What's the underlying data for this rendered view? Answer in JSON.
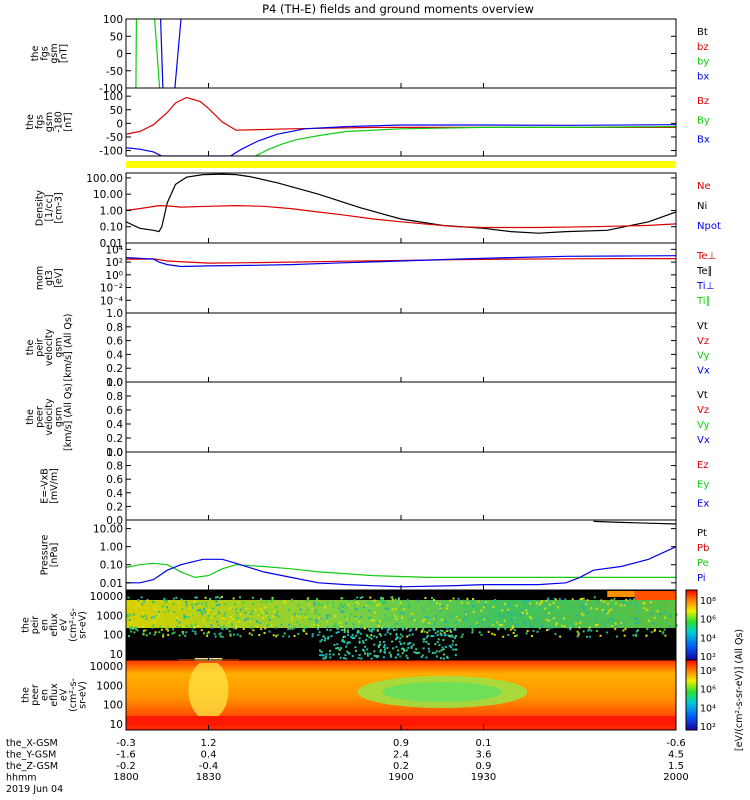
{
  "title": "P4 (TH-E) fields and ground moments overview",
  "colors": {
    "black": "#000000",
    "red": "#dd0000",
    "green": "#11cc11",
    "blue": "#0000ee",
    "yellow": "#ffff00",
    "spectrogram_background": "#000000"
  },
  "time_axis": {
    "tick_labels": [
      "1800",
      "1830",
      "1900",
      "1930",
      "2000"
    ],
    "row_labels": [
      "the_X-GSM",
      "the_Y-GSM",
      "the_Z-GSM",
      "hhmm",
      "2019 Jun 04"
    ],
    "position_rows": [
      [
        "-0.3",
        "1.2",
        "0.9",
        "0.1",
        "-0.6"
      ],
      [
        "-1.6",
        "0.4",
        "2.4",
        "3.6",
        "4.5"
      ],
      [
        "-0.2",
        "-0.4",
        "0.2",
        "0.9",
        "1.5"
      ]
    ]
  },
  "colorbars": [
    {
      "label": "[eV/(cm^2-s-sr-eV)] (All Qs)",
      "ticks": [
        "10^8",
        "10^6",
        "10^4",
        "10^2"
      ]
    },
    {
      "label": "[eV/(cm^2-s-sr-eV)]",
      "ticks": [
        "10^8",
        "10^6",
        "10^4",
        "10^2"
      ]
    }
  ],
  "chart_data": [
    {
      "type": "line",
      "ylabel": [
        "the",
        "fgs",
        "gsm",
        "[nT]"
      ],
      "ylim": [
        -100,
        100
      ],
      "y_ticks": [
        "100",
        "50",
        "0",
        "-50",
        "-100"
      ],
      "legend": [
        "Bt",
        "bz",
        "by",
        "bx"
      ],
      "legend_colors": [
        "#000000",
        "#dd0000",
        "#11cc11",
        "#0000ee"
      ],
      "series": [
        {
          "name": "by",
          "color": "#11cc11",
          "x": [
            1803.6,
            1803.8
          ],
          "y": [
            -100,
            100
          ]
        },
        {
          "name": "by",
          "color": "#11cc11",
          "x": [
            1810.4,
            1812.2
          ],
          "y": [
            100,
            -100
          ]
        },
        {
          "name": "bx",
          "color": "#0000ee",
          "x": [
            1812.6,
            1813.4
          ],
          "y": [
            100,
            -100
          ]
        },
        {
          "name": "bx",
          "color": "#0000ee",
          "x": [
            1817.8,
            1820.0
          ],
          "y": [
            -100,
            100
          ]
        }
      ]
    },
    {
      "type": "line",
      "ylabel": [
        "the",
        "fgs",
        "gsm",
        "-180",
        "[nT]"
      ],
      "ylim": [
        -120,
        130
      ],
      "y_ticks": [
        "100",
        "50",
        "0",
        "-50",
        "-100"
      ],
      "legend": [
        "Bz",
        "By",
        "Bx"
      ],
      "legend_colors": [
        "#dd0000",
        "#11cc11",
        "#0000ee"
      ],
      "series": [
        {
          "name": "Bz",
          "color": "#dd0000",
          "x": [
            1800,
            1805,
            1810,
            1815,
            1818,
            1822,
            1827,
            1830,
            1835,
            1840,
            1860,
            1890,
            1920,
            1950,
            1980,
            2000
          ],
          "y": [
            -40,
            -30,
            -5,
            40,
            75,
            95,
            80,
            55,
            5,
            -25,
            -20,
            -15,
            -15,
            -15,
            -15,
            -15
          ]
        },
        {
          "name": "By",
          "color": "#11cc11",
          "x": [
            1847,
            1852,
            1857,
            1862,
            1870,
            1880,
            1900,
            1930,
            1960,
            2000
          ],
          "y": [
            -120,
            -95,
            -75,
            -60,
            -45,
            -30,
            -20,
            -15,
            -15,
            -12
          ]
        },
        {
          "name": "Bx",
          "color": "#0000ee",
          "x": [
            1800,
            1805,
            1810,
            1813,
            1838,
            1842,
            1848,
            1855,
            1865,
            1880,
            1900,
            1930,
            1960,
            2000
          ],
          "y": [
            -90,
            -95,
            -105,
            -120,
            -120,
            -95,
            -65,
            -40,
            -20,
            -12,
            -6,
            -6,
            -7,
            -5
          ]
        }
      ]
    },
    {
      "type": "line",
      "ylabel": [
        "Density",
        "[1/cc]",
        "[cm-3]"
      ],
      "ylim": [
        0.01,
        200
      ],
      "y_ticks": [
        "100.00",
        "10.00",
        "1.00",
        "0.10",
        "0.01"
      ],
      "legend": [
        "Ne",
        "Ni",
        "Npot"
      ],
      "legend_colors": [
        "#dd0000",
        "#000000",
        "#0000ee"
      ],
      "series": [
        {
          "name": "Ni",
          "color": "#000000",
          "x": [
            1800,
            1805,
            1810,
            1812,
            1813,
            1815,
            1818,
            1822,
            1828,
            1835,
            1840,
            1845,
            1855,
            1870,
            1885,
            1900,
            1915,
            1930,
            1940,
            1950,
            1960,
            1975,
            1990,
            2000
          ],
          "y": [
            0.2,
            0.08,
            0.06,
            0.05,
            0.1,
            3,
            40,
            110,
            160,
            170,
            160,
            120,
            50,
            10,
            1.5,
            0.3,
            0.12,
            0.08,
            0.05,
            0.04,
            0.05,
            0.06,
            0.2,
            0.8
          ]
        },
        {
          "name": "Ne",
          "color": "#dd0000",
          "x": [
            1800,
            1805,
            1812,
            1815,
            1820,
            1830,
            1840,
            1850,
            1860,
            1870,
            1880,
            1890,
            1900,
            1910,
            1920,
            1930,
            1950,
            1970,
            1990,
            2000
          ],
          "y": [
            1.0,
            1.3,
            2.0,
            1.9,
            1.6,
            1.8,
            2.0,
            1.8,
            1.3,
            0.8,
            0.5,
            0.3,
            0.2,
            0.14,
            0.1,
            0.09,
            0.09,
            0.1,
            0.12,
            0.15
          ]
        }
      ]
    },
    {
      "type": "line",
      "ylabel": [
        "mom",
        "gt3",
        "[eV]"
      ],
      "y_scale": "log",
      "legend": [
        "Te⊥",
        "Te∥",
        "Ti⊥",
        "Ti∥"
      ],
      "legend_colors": [
        "#dd0000",
        "#000000",
        "#0000ee",
        "#11cc11"
      ],
      "y_ticks": [
        "10^4",
        "10^2",
        "10^0",
        "10^-2",
        "10^-4"
      ],
      "ylim": [
        1e-06,
        100000
      ],
      "series": [
        {
          "name": "Te⊥",
          "color": "#dd0000",
          "x": [
            1800,
            1805,
            1810,
            1815,
            1830,
            1845,
            1860,
            1880,
            1900,
            1920,
            1940,
            1960,
            1980,
            2000
          ],
          "y": [
            300,
            300,
            320,
            150,
            70,
            80,
            100,
            140,
            180,
            250,
            300,
            330,
            350,
            350
          ]
        },
        {
          "name": "Ti⊥",
          "color": "#0000ee",
          "x": [
            1800,
            1805,
            1810,
            1812,
            1815,
            1820,
            1830,
            1845,
            1860,
            1880,
            1900,
            1920,
            1940,
            1960,
            1980,
            2000
          ],
          "y": [
            500,
            400,
            300,
            100,
            40,
            20,
            25,
            30,
            40,
            80,
            150,
            300,
            500,
            800,
            900,
            1000
          ]
        }
      ]
    },
    {
      "type": "line",
      "ylabel": [
        "the",
        "peir",
        "velocity",
        "gsm",
        "[km/s] (All Qs)"
      ],
      "ylim": [
        0,
        1
      ],
      "y_ticks": [
        "1.0",
        "0.8",
        "0.6",
        "0.4",
        "0.2",
        "0.0"
      ],
      "legend": [
        "Vt",
        "Vz",
        "Vy",
        "Vx"
      ],
      "legend_colors": [
        "#000000",
        "#dd0000",
        "#11cc11",
        "#0000ee"
      ],
      "series": []
    },
    {
      "type": "line",
      "ylabel": [
        "the",
        "peer",
        "velocity",
        "gsm",
        "[km/s] (All Qs)"
      ],
      "ylim": [
        0,
        1
      ],
      "y_ticks": [
        "1.0",
        "0.8",
        "0.6",
        "0.4",
        "0.2",
        "0.0"
      ],
      "legend": [
        "Vt",
        "Vz",
        "Vy",
        "Vx"
      ],
      "legend_colors": [
        "#000000",
        "#dd0000",
        "#11cc11",
        "#0000ee"
      ],
      "series": []
    },
    {
      "type": "line",
      "ylabel": [
        "E=-VxB",
        "[mV/m]"
      ],
      "ylim": [
        0,
        1
      ],
      "y_ticks": [
        "1.0",
        "0.8",
        "0.6",
        "0.4",
        "0.2",
        "0.0"
      ],
      "legend": [
        "Ez",
        "Ey",
        "Ex"
      ],
      "legend_colors": [
        "#dd0000",
        "#11cc11",
        "#0000ee"
      ],
      "series": []
    },
    {
      "type": "line",
      "ylabel": [
        "Pressure",
        "[nPa]"
      ],
      "ylim": [
        0.004,
        30
      ],
      "y_ticks": [
        "10.00",
        "1.00",
        "0.10",
        "0.01"
      ],
      "legend": [
        "Pt",
        "Pb",
        "Pe",
        "Pi"
      ],
      "legend_colors": [
        "#000000",
        "#dd0000",
        "#11cc11",
        "#0000ee"
      ],
      "series": [
        {
          "name": "Pt",
          "color": "#000000",
          "x": [
            1970,
            1980,
            1990,
            2000
          ],
          "y": [
            25,
            22,
            20,
            18
          ]
        },
        {
          "name": "Pe",
          "color": "#11cc11",
          "x": [
            1800,
            1805,
            1810,
            1815,
            1820,
            1825,
            1830,
            1835,
            1840,
            1850,
            1860,
            1870,
            1890,
            1910,
            1930,
            1950,
            1960,
            1970,
            1990,
            2000
          ],
          "y": [
            0.07,
            0.1,
            0.12,
            0.1,
            0.04,
            0.02,
            0.025,
            0.06,
            0.1,
            0.08,
            0.06,
            0.04,
            0.025,
            0.02,
            0.02,
            0.02,
            0.02,
            0.02,
            0.02,
            0.02
          ]
        },
        {
          "name": "Pi",
          "color": "#0000ee",
          "x": [
            1800,
            1805,
            1810,
            1815,
            1820,
            1828,
            1835,
            1840,
            1850,
            1860,
            1870,
            1880,
            1900,
            1920,
            1930,
            1950,
            1960,
            1965,
            1970,
            1980,
            1990,
            2000
          ],
          "y": [
            0.01,
            0.01,
            0.015,
            0.05,
            0.1,
            0.2,
            0.2,
            0.12,
            0.04,
            0.02,
            0.01,
            0.008,
            0.006,
            0.007,
            0.008,
            0.008,
            0.01,
            0.02,
            0.05,
            0.08,
            0.2,
            1.0
          ]
        }
      ]
    },
    {
      "type": "heatmap",
      "ylabel": [
        "the",
        "peir",
        "en",
        "eflux",
        "eV",
        "(cm^2-s-",
        "sr-eV)"
      ],
      "ylim": [
        5,
        20000
      ],
      "y_ticks": [
        "10000",
        "1000",
        "100",
        "10"
      ]
    },
    {
      "type": "heatmap",
      "ylabel": [
        "the",
        "peer",
        "en",
        "eflux",
        "eV",
        "(cm^2-s-",
        "sr-eV)"
      ],
      "ylim": [
        5,
        20000
      ],
      "y_ticks": [
        "10000",
        "1000",
        "100",
        "10"
      ]
    }
  ]
}
